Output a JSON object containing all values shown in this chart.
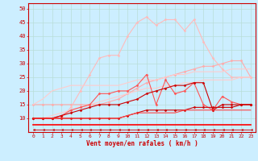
{
  "xlabel": "Vent moyen/en rafales ( km/h )",
  "xlim": [
    -0.5,
    23.5
  ],
  "ylim": [
    5,
    52
  ],
  "yticks": [
    10,
    15,
    20,
    25,
    30,
    35,
    40,
    45,
    50
  ],
  "xticks": [
    0,
    1,
    2,
    3,
    4,
    5,
    6,
    7,
    8,
    9,
    10,
    11,
    12,
    13,
    14,
    15,
    16,
    17,
    18,
    19,
    20,
    21,
    22,
    23
  ],
  "background_color": "#cceeff",
  "grid_color": "#aaddcc",
  "lines": [
    {
      "x": [
        0,
        1,
        2,
        3,
        4,
        5,
        6,
        7,
        8,
        9,
        10,
        11,
        12,
        13,
        14,
        15,
        16,
        17,
        18,
        19,
        20,
        21,
        22,
        23
      ],
      "y": [
        15,
        15,
        15,
        15,
        15,
        15,
        15,
        15,
        16,
        17,
        19,
        21,
        23,
        24,
        25,
        26,
        27,
        28,
        29,
        29,
        30,
        31,
        31,
        25
      ],
      "color": "#ffaaaa",
      "lw": 0.8,
      "marker": "D",
      "ms": 1.5
    },
    {
      "x": [
        0,
        1,
        2,
        3,
        4,
        5,
        6,
        7,
        8,
        9,
        10,
        11,
        12,
        13,
        14,
        15,
        16,
        17,
        18,
        19,
        20,
        21,
        22,
        23
      ],
      "y": [
        10,
        10,
        10,
        10,
        14,
        20,
        26,
        32,
        33,
        33,
        40,
        45,
        47,
        44,
        46,
        46,
        42,
        46,
        38,
        32,
        28,
        25,
        25,
        25
      ],
      "color": "#ffbbbb",
      "lw": 0.8,
      "marker": "D",
      "ms": 1.5
    },
    {
      "x": [
        0,
        1,
        2,
        3,
        4,
        5,
        6,
        7,
        8,
        9,
        10,
        11,
        12,
        13,
        14,
        15,
        16,
        17,
        18,
        19,
        20,
        21,
        22,
        23
      ],
      "y": [
        15,
        17,
        20,
        21,
        22,
        22,
        22,
        22,
        22,
        22,
        23,
        24,
        24,
        24,
        25,
        26,
        26,
        27,
        27,
        27,
        27,
        28,
        28,
        28
      ],
      "color": "#ffcccc",
      "lw": 0.8,
      "marker": null,
      "ms": 0
    },
    {
      "x": [
        0,
        1,
        2,
        3,
        4,
        5,
        6,
        7,
        8,
        9,
        10,
        11,
        12,
        13,
        14,
        15,
        16,
        17,
        18,
        19,
        20,
        21,
        22,
        23
      ],
      "y": [
        10,
        10,
        11,
        12,
        13,
        14,
        15,
        16,
        17,
        18,
        19,
        20,
        21,
        21,
        22,
        22,
        23,
        23,
        24,
        24,
        24,
        24,
        25,
        25
      ],
      "color": "#ffcccc",
      "lw": 0.8,
      "marker": null,
      "ms": 0
    },
    {
      "x": [
        0,
        1,
        2,
        3,
        4,
        5,
        6,
        7,
        8,
        9,
        10,
        11,
        12,
        13,
        14,
        15,
        16,
        17,
        18,
        19,
        20,
        21,
        22,
        23
      ],
      "y": [
        10,
        10,
        10,
        11,
        13,
        14,
        15,
        19,
        19,
        20,
        20,
        22,
        26,
        15,
        24,
        19,
        20,
        23,
        15,
        13,
        18,
        16,
        15,
        15
      ],
      "color": "#ff5555",
      "lw": 0.8,
      "marker": "D",
      "ms": 1.5
    },
    {
      "x": [
        0,
        1,
        2,
        3,
        4,
        5,
        6,
        7,
        8,
        9,
        10,
        11,
        12,
        13,
        14,
        15,
        16,
        17,
        18,
        19,
        20,
        21,
        22,
        23
      ],
      "y": [
        10,
        10,
        10,
        11,
        12,
        13,
        14,
        15,
        15,
        15,
        16,
        17,
        19,
        20,
        21,
        22,
        22,
        23,
        23,
        13,
        15,
        15,
        15,
        15
      ],
      "color": "#cc0000",
      "lw": 0.8,
      "marker": "D",
      "ms": 1.5
    },
    {
      "x": [
        0,
        1,
        2,
        3,
        4,
        5,
        6,
        7,
        8,
        9,
        10,
        11,
        12,
        13,
        14,
        15,
        16,
        17,
        18,
        19,
        20,
        21,
        22,
        23
      ],
      "y": [
        10,
        10,
        10,
        10,
        10,
        10,
        10,
        10,
        10,
        10,
        11,
        12,
        13,
        13,
        13,
        13,
        13,
        14,
        14,
        14,
        14,
        14,
        15,
        15
      ],
      "color": "#cc0000",
      "lw": 0.8,
      "marker": "D",
      "ms": 1.5
    },
    {
      "x": [
        0,
        1,
        2,
        3,
        4,
        5,
        6,
        7,
        8,
        9,
        10,
        11,
        12,
        13,
        14,
        15,
        16,
        17,
        18,
        19,
        20,
        21,
        22,
        23
      ],
      "y": [
        10,
        10,
        10,
        10,
        10,
        10,
        10,
        10,
        10,
        10,
        11,
        12,
        12,
        12,
        12,
        12,
        13,
        13,
        13,
        13,
        13,
        13,
        13,
        13
      ],
      "color": "#ff4444",
      "lw": 0.8,
      "marker": null,
      "ms": 0
    },
    {
      "x": [
        0,
        1,
        2,
        3,
        4,
        5,
        6,
        7,
        8,
        9,
        10,
        11,
        12,
        13,
        14,
        15,
        16,
        17,
        18,
        19,
        20,
        21,
        22,
        23
      ],
      "y": [
        7.5,
        7.5,
        7.5,
        7.5,
        7.5,
        7.5,
        7.5,
        7.5,
        7.5,
        7.5,
        7.5,
        7.5,
        7.5,
        7.5,
        7.5,
        7.5,
        7.5,
        7.5,
        7.5,
        7.5,
        7.5,
        7.5,
        7.5,
        7.5
      ],
      "color": "#ff0000",
      "lw": 1.2,
      "marker": null,
      "ms": 0
    },
    {
      "x": [
        0,
        1,
        2,
        3,
        4,
        5,
        6,
        7,
        8,
        9,
        10,
        11,
        12,
        13,
        14,
        15,
        16,
        17,
        18,
        19,
        20,
        21,
        22,
        23
      ],
      "y": [
        6,
        6,
        6,
        6,
        6,
        6,
        6,
        6,
        6,
        6,
        6,
        6,
        6,
        6,
        6,
        6,
        6,
        6,
        6,
        6,
        6,
        6,
        6,
        6
      ],
      "color": "#cc0000",
      "lw": 0.6,
      "marker": 4,
      "ms": 2.0
    }
  ]
}
